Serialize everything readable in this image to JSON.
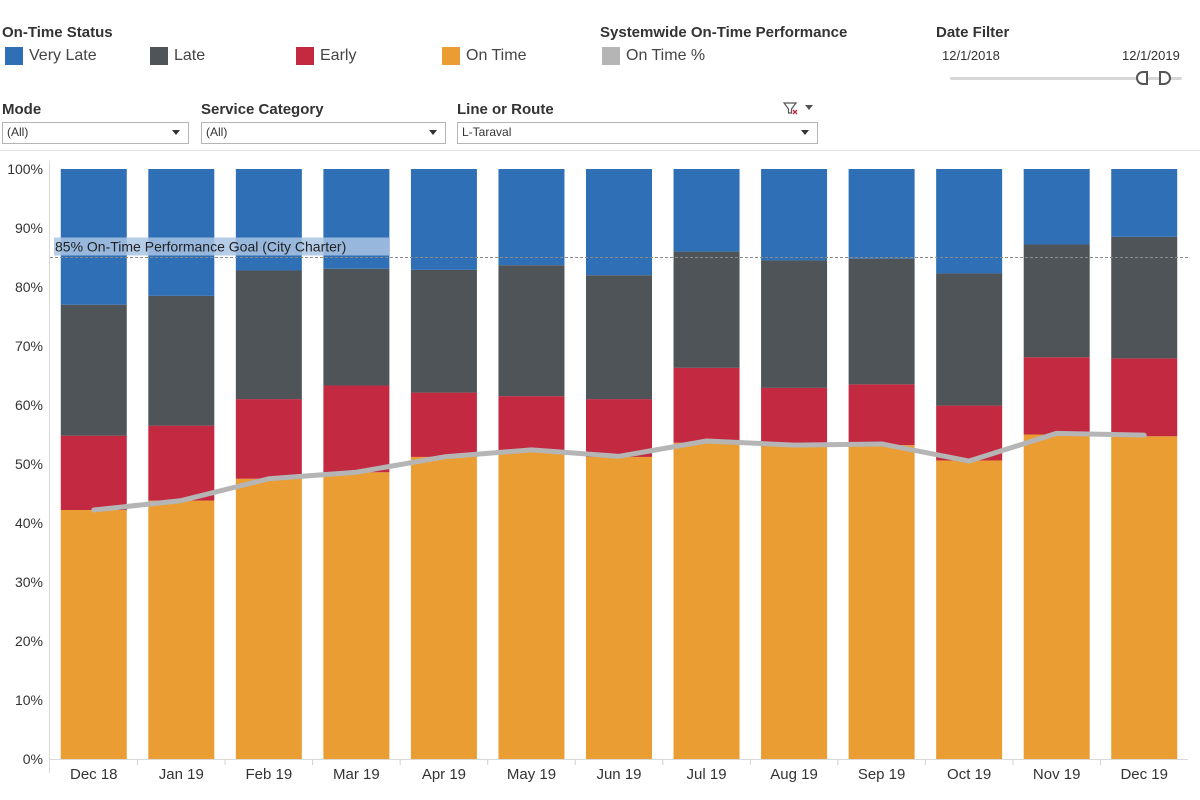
{
  "legend": {
    "status_title": "On-Time Status",
    "status_items": [
      {
        "label": "Very Late",
        "color": "#2f6fb5"
      },
      {
        "label": "Late",
        "color": "#4e5457"
      },
      {
        "label": "Early",
        "color": "#c32941"
      },
      {
        "label": "On Time",
        "color": "#e99d32"
      }
    ],
    "systemwide_title": "Systemwide On-Time Performance",
    "systemwide_item": {
      "label": "On Time %",
      "color": "#b5b5b5"
    }
  },
  "date_filter": {
    "title": "Date Filter",
    "start": "12/1/2018",
    "end": "12/1/2019"
  },
  "filters": {
    "mode": {
      "label": "Mode",
      "value": "(All)"
    },
    "service_category": {
      "label": "Service Category",
      "value": "(All)"
    },
    "line_or_route": {
      "label": "Line or Route",
      "value": "L-Taraval"
    }
  },
  "chart_data": {
    "type": "bar",
    "stacked": true,
    "categories": [
      "Dec 18",
      "Jan 19",
      "Feb 19",
      "Mar 19",
      "Apr 19",
      "May 19",
      "Jun 19",
      "Jul 19",
      "Aug 19",
      "Sep 19",
      "Oct 19",
      "Nov 19",
      "Dec 19"
    ],
    "series": [
      {
        "name": "On Time",
        "color": "#e99d32",
        "values": [
          42.2,
          43.8,
          47.5,
          48.6,
          51.2,
          52.2,
          51.2,
          53.6,
          53.0,
          53.2,
          50.6,
          55.0,
          54.7
        ]
      },
      {
        "name": "Early",
        "color": "#c32941",
        "values": [
          12.6,
          12.7,
          13.5,
          14.7,
          10.9,
          9.3,
          9.8,
          12.7,
          9.9,
          10.3,
          9.3,
          13.1,
          13.2
        ]
      },
      {
        "name": "Late",
        "color": "#4e5457",
        "values": [
          22.2,
          22.0,
          21.8,
          19.8,
          20.8,
          22.2,
          21.0,
          19.7,
          21.6,
          21.3,
          22.4,
          19.1,
          20.6
        ]
      },
      {
        "name": "Very Late",
        "color": "#2f6fb5",
        "values": [
          23.0,
          21.5,
          17.2,
          16.9,
          17.1,
          16.3,
          18.0,
          14.0,
          15.5,
          15.2,
          17.7,
          12.8,
          11.5
        ]
      }
    ],
    "line": {
      "name": "On Time %",
      "color": "#b5b5b5",
      "values": [
        42.2,
        43.8,
        47.5,
        48.6,
        51.2,
        52.4,
        51.3,
        53.9,
        53.2,
        53.4,
        50.5,
        55.2,
        54.9
      ]
    },
    "goal": {
      "value": 85,
      "label": "85% On-Time Performance Goal (City Charter)"
    },
    "ylim": [
      0,
      100
    ],
    "yticks": [
      "0%",
      "10%",
      "20%",
      "30%",
      "40%",
      "50%",
      "60%",
      "70%",
      "80%",
      "90%",
      "100%"
    ],
    "xlabel": "",
    "ylabel": ""
  }
}
